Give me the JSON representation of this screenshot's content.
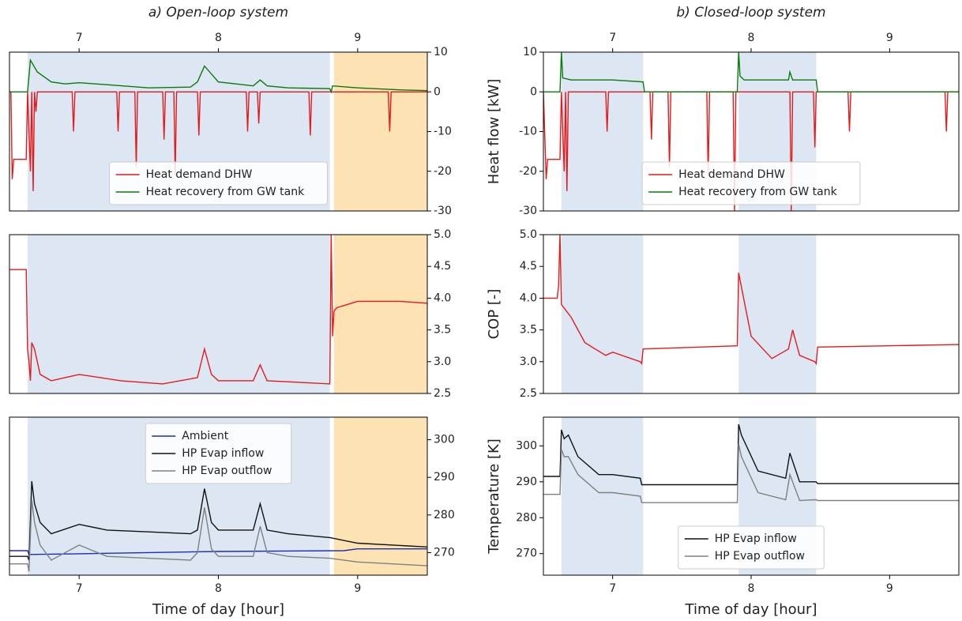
{
  "chart_data": [
    {
      "type": "line",
      "title": "a) Open-loop system",
      "xlim": [
        6.5,
        9.5
      ],
      "xticks": [
        7,
        8,
        9
      ],
      "x_ticks_position": "top",
      "ylim": [
        -30,
        10
      ],
      "yticks": [
        -30,
        -20,
        -10,
        0,
        10
      ],
      "y_axis_side": "right",
      "legend": "lower center",
      "spans": [
        {
          "x": [
            6.63,
            8.8
          ],
          "color": "#dce7f3"
        },
        {
          "x": [
            8.83,
            9.5
          ],
          "color": "#fde3b3"
        }
      ],
      "series": [
        {
          "name": "Heat demand DHW",
          "color": "#e41a1c",
          "x": [
            6.5,
            6.51,
            6.52,
            6.53,
            6.62,
            6.63,
            6.65,
            6.66,
            6.67,
            6.68,
            6.69,
            6.7,
            6.95,
            6.96,
            6.97,
            7.27,
            7.28,
            7.29,
            7.4,
            7.41,
            7.42,
            7.6,
            7.61,
            7.62,
            7.68,
            7.69,
            7.7,
            7.85,
            7.86,
            7.87,
            8.2,
            8.21,
            8.22,
            8.28,
            8.29,
            8.3,
            8.65,
            8.66,
            8.67,
            9.22,
            9.23,
            9.24,
            9.5
          ],
          "values": [
            0,
            0,
            -22,
            -17,
            -17,
            0,
            -20,
            0,
            -25,
            0,
            -5,
            0,
            0,
            -10,
            0,
            0,
            -10,
            0,
            0,
            -19,
            0,
            0,
            -12,
            0,
            0,
            -21,
            0,
            0,
            -11,
            0,
            0,
            -10,
            0,
            0,
            -8,
            0,
            0,
            -11,
            0,
            0,
            -10,
            0,
            0
          ]
        },
        {
          "name": "Heat recovery from GW tank",
          "color": "#0a7a0a",
          "x": [
            6.5,
            6.63,
            6.65,
            6.7,
            6.8,
            6.9,
            7.0,
            7.2,
            7.5,
            7.8,
            7.85,
            7.9,
            8.0,
            8.25,
            8.3,
            8.35,
            8.5,
            8.8,
            8.81,
            8.82,
            9.0,
            9.3,
            9.5
          ],
          "values": [
            0,
            0,
            8,
            5,
            2.5,
            2,
            2.3,
            1.8,
            1,
            1.2,
            2.5,
            6.5,
            2.5,
            1.5,
            3,
            1.5,
            1,
            0.8,
            0,
            1.5,
            1,
            0.5,
            0.3
          ]
        }
      ]
    },
    {
      "type": "line",
      "xlim": [
        6.5,
        9.5
      ],
      "x_ticks_position": "none",
      "ylim": [
        2.5,
        5
      ],
      "yticks": [
        2.5,
        {
          "value": 3,
          "label": "3.0"
        },
        3.5,
        {
          "value": 4,
          "label": "4.0"
        },
        4.5,
        {
          "value": 5,
          "label": "5.0"
        }
      ],
      "y_axis_side": "right",
      "spans": [
        {
          "x": [
            6.63,
            8.8
          ],
          "color": "#dce7f3"
        },
        {
          "x": [
            8.83,
            9.5
          ],
          "color": "#fde3b3"
        }
      ],
      "series": [
        {
          "color": "#e41a1c",
          "x": [
            6.5,
            6.62,
            6.63,
            6.64,
            6.65,
            6.66,
            6.68,
            6.72,
            6.8,
            6.9,
            7.0,
            7.3,
            7.6,
            7.85,
            7.9,
            7.95,
            8.0,
            8.25,
            8.3,
            8.35,
            8.8,
            8.81,
            8.82,
            8.83,
            8.85,
            9.0,
            9.3,
            9.5
          ],
          "values": [
            4.45,
            4.45,
            3.2,
            3.0,
            2.7,
            3.3,
            3.2,
            2.8,
            2.7,
            2.75,
            2.8,
            2.7,
            2.65,
            2.75,
            3.2,
            2.8,
            2.7,
            2.7,
            2.95,
            2.7,
            2.65,
            5.0,
            3.4,
            3.8,
            3.85,
            3.95,
            3.95,
            3.92
          ]
        }
      ]
    },
    {
      "type": "line",
      "xlabel": "Time of day [hour]",
      "xlim": [
        6.5,
        9.5
      ],
      "xticks": [
        7,
        8,
        9
      ],
      "x_ticks_position": "bottom",
      "ylim": [
        264,
        306
      ],
      "yticks": [
        270,
        280,
        290,
        300
      ],
      "y_axis_side": "right",
      "legend": "upper center",
      "spans": [
        {
          "x": [
            6.63,
            8.8
          ],
          "color": "#dce7f3"
        },
        {
          "x": [
            8.83,
            9.5
          ],
          "color": "#fde3b3"
        }
      ],
      "series": [
        {
          "name": "Ambient",
          "color": "#1a2fb0",
          "x": [
            6.5,
            6.63,
            6.64,
            7.0,
            7.5,
            8.0,
            8.9,
            9.0,
            9.5
          ],
          "values": [
            270.5,
            270.5,
            269.5,
            269.7,
            270,
            270.3,
            270.5,
            271,
            271
          ]
        },
        {
          "name": "HP Evap inflow",
          "color": "#111111",
          "x": [
            6.5,
            6.63,
            6.64,
            6.66,
            6.68,
            6.72,
            6.8,
            7.0,
            7.2,
            7.5,
            7.8,
            7.85,
            7.9,
            7.95,
            8.0,
            8.25,
            8.3,
            8.35,
            8.5,
            8.8,
            9.0,
            9.5
          ],
          "values": [
            269,
            269,
            268,
            289,
            283,
            278,
            275,
            277.5,
            276,
            275.5,
            275,
            276,
            287,
            278,
            276,
            276,
            283,
            276,
            275,
            274,
            272.5,
            271.5
          ]
        },
        {
          "name": "HP Evap outflow",
          "color": "#808080",
          "x": [
            6.5,
            6.63,
            6.64,
            6.66,
            6.68,
            6.72,
            6.8,
            7.0,
            7.2,
            7.5,
            7.8,
            7.85,
            7.9,
            7.95,
            8.0,
            8.25,
            8.3,
            8.35,
            8.5,
            8.8,
            9.0,
            9.5
          ],
          "values": [
            267,
            267,
            265,
            284,
            278,
            272,
            268,
            272,
            269,
            268.5,
            268,
            270,
            282,
            271,
            269,
            269,
            277,
            270,
            269,
            268.5,
            267.5,
            266.5
          ]
        }
      ]
    },
    {
      "type": "line",
      "title": "b) Closed-loop system",
      "ylabel": "Heat flow [kW]",
      "xlim": [
        6.5,
        9.5
      ],
      "xticks": [
        7,
        8,
        9
      ],
      "x_ticks_position": "top",
      "ylim": [
        -30,
        10
      ],
      "yticks": [
        -30,
        -20,
        -10,
        0,
        10
      ],
      "y_axis_side": "left",
      "legend": "lower center",
      "spans": [
        {
          "x": [
            6.63,
            7.22
          ],
          "color": "#dce7f3"
        },
        {
          "x": [
            7.91,
            8.47
          ],
          "color": "#dce7f3"
        }
      ],
      "series": [
        {
          "name": "Heat demand DHW",
          "color": "#e41a1c",
          "x": [
            6.5,
            6.52,
            6.53,
            6.62,
            6.63,
            6.65,
            6.66,
            6.67,
            6.68,
            6.95,
            6.96,
            6.97,
            7.27,
            7.28,
            7.29,
            7.4,
            7.41,
            7.42,
            7.68,
            7.69,
            7.7,
            7.87,
            7.88,
            7.89,
            7.9,
            8.28,
            8.29,
            8.3,
            8.45,
            8.46,
            8.47,
            8.7,
            8.71,
            8.72,
            9.4,
            9.41,
            9.42,
            9.5
          ],
          "values": [
            0,
            -22,
            -17,
            -17,
            0,
            -20,
            0,
            -25,
            0,
            0,
            -10,
            0,
            0,
            -12,
            0,
            0,
            -19,
            0,
            0,
            -21,
            0,
            0,
            -30,
            0,
            0,
            0,
            -30,
            0,
            0,
            -14,
            0,
            0,
            -10,
            0,
            0,
            -10,
            0,
            0
          ]
        },
        {
          "name": "Heat recovery from GW tank",
          "color": "#0a7a0a",
          "x": [
            6.5,
            6.62,
            6.63,
            6.64,
            6.7,
            7.0,
            7.22,
            7.23,
            7.9,
            7.91,
            7.92,
            7.95,
            8.27,
            8.28,
            8.3,
            8.47,
            8.48,
            9.5
          ],
          "values": [
            0,
            0,
            10,
            3.5,
            3,
            3,
            2.5,
            0,
            0,
            10,
            4,
            3,
            3,
            5,
            3,
            3,
            0,
            0
          ]
        }
      ]
    },
    {
      "type": "line",
      "ylabel": "COP [-]",
      "xlim": [
        6.5,
        9.5
      ],
      "x_ticks_position": "none",
      "ylim": [
        2.5,
        5
      ],
      "yticks": [
        2.5,
        {
          "value": 3,
          "label": "3.0"
        },
        3.5,
        {
          "value": 4,
          "label": "4.0"
        },
        4.5,
        {
          "value": 5,
          "label": "5.0"
        }
      ],
      "y_axis_side": "left",
      "spans": [
        {
          "x": [
            6.63,
            7.22
          ],
          "color": "#dce7f3"
        },
        {
          "x": [
            7.91,
            8.47
          ],
          "color": "#dce7f3"
        }
      ],
      "series": [
        {
          "color": "#e41a1c",
          "x": [
            6.5,
            6.6,
            6.61,
            6.62,
            6.63,
            6.7,
            6.8,
            6.95,
            7.0,
            7.2,
            7.21,
            7.22,
            7.9,
            7.91,
            8.0,
            8.15,
            8.27,
            8.3,
            8.35,
            8.46,
            8.47,
            8.48,
            9.5
          ],
          "values": [
            4.0,
            4.0,
            4.2,
            5.0,
            3.9,
            3.7,
            3.3,
            3.1,
            3.15,
            3.0,
            2.97,
            3.2,
            3.25,
            4.4,
            3.4,
            3.05,
            3.2,
            3.5,
            3.1,
            3.0,
            2.97,
            3.23,
            3.27
          ]
        }
      ]
    },
    {
      "type": "line",
      "xlabel": "Time of day [hour]",
      "ylabel": "Temperature [K]",
      "xlim": [
        6.5,
        9.5
      ],
      "xticks": [
        7,
        8,
        9
      ],
      "x_ticks_position": "bottom",
      "ylim": [
        264,
        308
      ],
      "yticks": [
        270,
        280,
        290,
        300
      ],
      "y_axis_side": "left",
      "legend": "lower center",
      "spans": [
        {
          "x": [
            6.63,
            7.22
          ],
          "color": "#dce7f3"
        },
        {
          "x": [
            7.91,
            8.47
          ],
          "color": "#dce7f3"
        }
      ],
      "series": [
        {
          "name": "HP Evap inflow",
          "color": "#111111",
          "x": [
            6.5,
            6.62,
            6.63,
            6.65,
            6.68,
            6.75,
            6.9,
            7.0,
            7.2,
            7.21,
            7.9,
            7.91,
            7.93,
            8.05,
            8.25,
            8.28,
            8.35,
            8.47,
            8.48,
            9.5
          ],
          "values": [
            291.5,
            291.5,
            304.5,
            302,
            303,
            297,
            292,
            292,
            291,
            289.2,
            289.2,
            306,
            303,
            293,
            291,
            298,
            290,
            290,
            289.5,
            289.5
          ]
        },
        {
          "name": "HP Evap outflow",
          "color": "#808080",
          "x": [
            6.5,
            6.62,
            6.63,
            6.65,
            6.68,
            6.75,
            6.9,
            7.0,
            7.2,
            7.21,
            7.9,
            7.91,
            7.93,
            8.05,
            8.25,
            8.28,
            8.35,
            8.47,
            8.48,
            9.5
          ],
          "values": [
            286.5,
            286.5,
            299,
            297,
            297,
            292,
            287,
            287,
            286,
            284.2,
            284.2,
            300.5,
            297,
            287,
            285,
            292,
            284.8,
            285,
            284.8,
            284.8
          ]
        }
      ]
    }
  ]
}
